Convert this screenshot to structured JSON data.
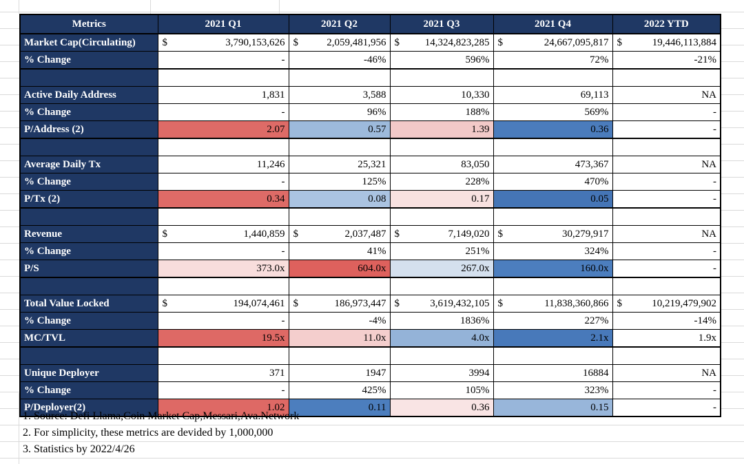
{
  "palette": {
    "header_bg": "#1F3864",
    "border": "#000000",
    "gridline": "#D9D9D9",
    "strong_red": "#DE6965",
    "light_red": "#F4CECD",
    "strong_blue": "#4C7EBE",
    "light_blue": "#9DBADC"
  },
  "sheet": {
    "header": [
      "Metrics",
      "2021 Q1",
      "2021 Q2",
      "2021 Q3",
      "2021 Q4",
      "2022 YTD"
    ],
    "rows": [
      {
        "label": "Market Cap(Circulating)",
        "currency": true,
        "values": [
          "3,790,153,626",
          "2,059,481,956",
          "14,324,823,285",
          "24,667,095,817",
          "19,446,113,884"
        ]
      },
      {
        "label": "% Change",
        "values": [
          "-",
          "-46%",
          "596%",
          "72%",
          "-21%"
        ],
        "section_end": true
      },
      {
        "spacer": true
      },
      {
        "label": "Active Daily Address",
        "values": [
          "1,831",
          "3,588",
          "10,330",
          "69,113",
          "NA"
        ]
      },
      {
        "label": "% Change",
        "values": [
          "-",
          "96%",
          "188%",
          "569%",
          "-"
        ]
      },
      {
        "label": "P/Address (2)",
        "values": [
          "2.07",
          "0.57",
          "1.39",
          "0.36",
          "-"
        ],
        "colors": [
          "#DE6B67",
          "#9DBADC",
          "#F2C9C8",
          "#4B7CBC",
          null
        ],
        "section_end": true
      },
      {
        "spacer": true
      },
      {
        "label": "Average Daily Tx",
        "values": [
          "11,246",
          "25,321",
          "83,050",
          "473,367",
          "NA"
        ]
      },
      {
        "label": "% Change",
        "values": [
          "-",
          "125%",
          "228%",
          "470%",
          "-"
        ]
      },
      {
        "label": "P/Tx (2)",
        "values": [
          "0.34",
          "0.08",
          "0.17",
          "0.05",
          "-"
        ],
        "colors": [
          "#DE6B67",
          "#AAC3E1",
          "#F8E1E0",
          "#4575B6",
          null
        ],
        "section_end": true
      },
      {
        "spacer": true
      },
      {
        "label": "Revenue",
        "currency": true,
        "values": [
          "1,440,859",
          "2,037,487",
          "7,149,020",
          "30,279,917",
          "NA"
        ]
      },
      {
        "label": "% Change",
        "values": [
          "-",
          "41%",
          "251%",
          "324%",
          "-"
        ]
      },
      {
        "label": "P/S",
        "values": [
          "373.0x",
          "604.0x",
          "267.0x",
          "160.0x",
          "-"
        ],
        "colors": [
          "#F8DDDC",
          "#DE615D",
          "#D4E0EE",
          "#4C7EBE",
          null
        ],
        "section_end": true
      },
      {
        "spacer": true
      },
      {
        "label": "Total Value Locked",
        "currency": true,
        "values": [
          "194,074,461",
          "186,973,447",
          "3,619,432,105",
          "11,838,360,866",
          "10,219,479,902"
        ]
      },
      {
        "label": "% Change",
        "values": [
          "-",
          "-4%",
          "1836%",
          "227%",
          "-14%"
        ]
      },
      {
        "label": "MC/TVL",
        "values": [
          "19.5x",
          "11.0x",
          "4.0x",
          "2.1x",
          "1.9x"
        ],
        "colors": [
          "#DE6965",
          "#F4CECD",
          "#94B3D8",
          "#4879BA",
          null
        ],
        "section_end": true
      },
      {
        "spacer": true
      },
      {
        "label": "Unique Deployer",
        "values": [
          "371",
          "1947",
          "3994",
          "16884",
          "NA"
        ]
      },
      {
        "label": "% Change",
        "values": [
          "-",
          "425%",
          "105%",
          "323%",
          "-"
        ]
      },
      {
        "label": "P/Deployer(2)",
        "values": [
          "1.02",
          "0.11",
          "0.36",
          "0.15",
          "-"
        ],
        "colors": [
          "#DE6965",
          "#4C7EBE",
          "#F9E4E4",
          "#98B6DA",
          null
        ],
        "section_end": true
      }
    ]
  },
  "notes": [
    "1. Source: Defi Llama,Coin Market Cap,Messari,Ava.Network",
    "2. For simplicity, these metrics are devided by 1,000,000",
    "3. Statistics by 2022/4/26"
  ]
}
